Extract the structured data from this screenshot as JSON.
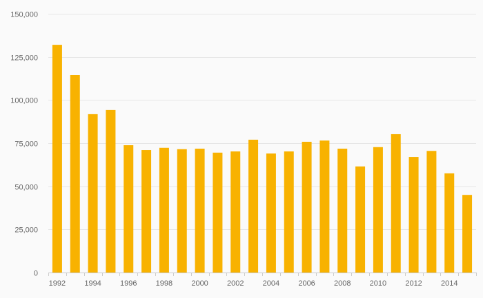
{
  "chart_data": {
    "type": "bar",
    "categories": [
      "1992",
      "1993",
      "1994",
      "1995",
      "1996",
      "1997",
      "1998",
      "1999",
      "2000",
      "2001",
      "2002",
      "2003",
      "2004",
      "2005",
      "2006",
      "2007",
      "2008",
      "2009",
      "2010",
      "2011",
      "2012",
      "2013",
      "2014",
      "2015"
    ],
    "x_tick_labels": [
      "1992",
      "1994",
      "1996",
      "1998",
      "2000",
      "2002",
      "2004",
      "2006",
      "2008",
      "2010",
      "2012",
      "2014"
    ],
    "series": [
      {
        "values": [
          132000,
          114500,
          91800,
          94200,
          73800,
          71000,
          72300,
          71500,
          71800,
          69500,
          70200,
          77000,
          69000,
          70200,
          75800,
          76500,
          71800,
          61500,
          72700,
          80200,
          67000,
          70500,
          57500,
          45000
        ]
      }
    ],
    "y_ticks": [
      0,
      25000,
      50000,
      75000,
      100000,
      125000,
      150000
    ],
    "y_tick_labels": [
      "0",
      "25,000",
      "50,000",
      "75,000",
      "100,000",
      "125,000",
      "150,000"
    ],
    "ylim": [
      0,
      150000
    ],
    "grid": true,
    "bar_color": "#f8b200",
    "grid_color": "#e6e6e6",
    "axis_color": "#cccccc",
    "title": "",
    "xlabel": "",
    "ylabel": ""
  }
}
